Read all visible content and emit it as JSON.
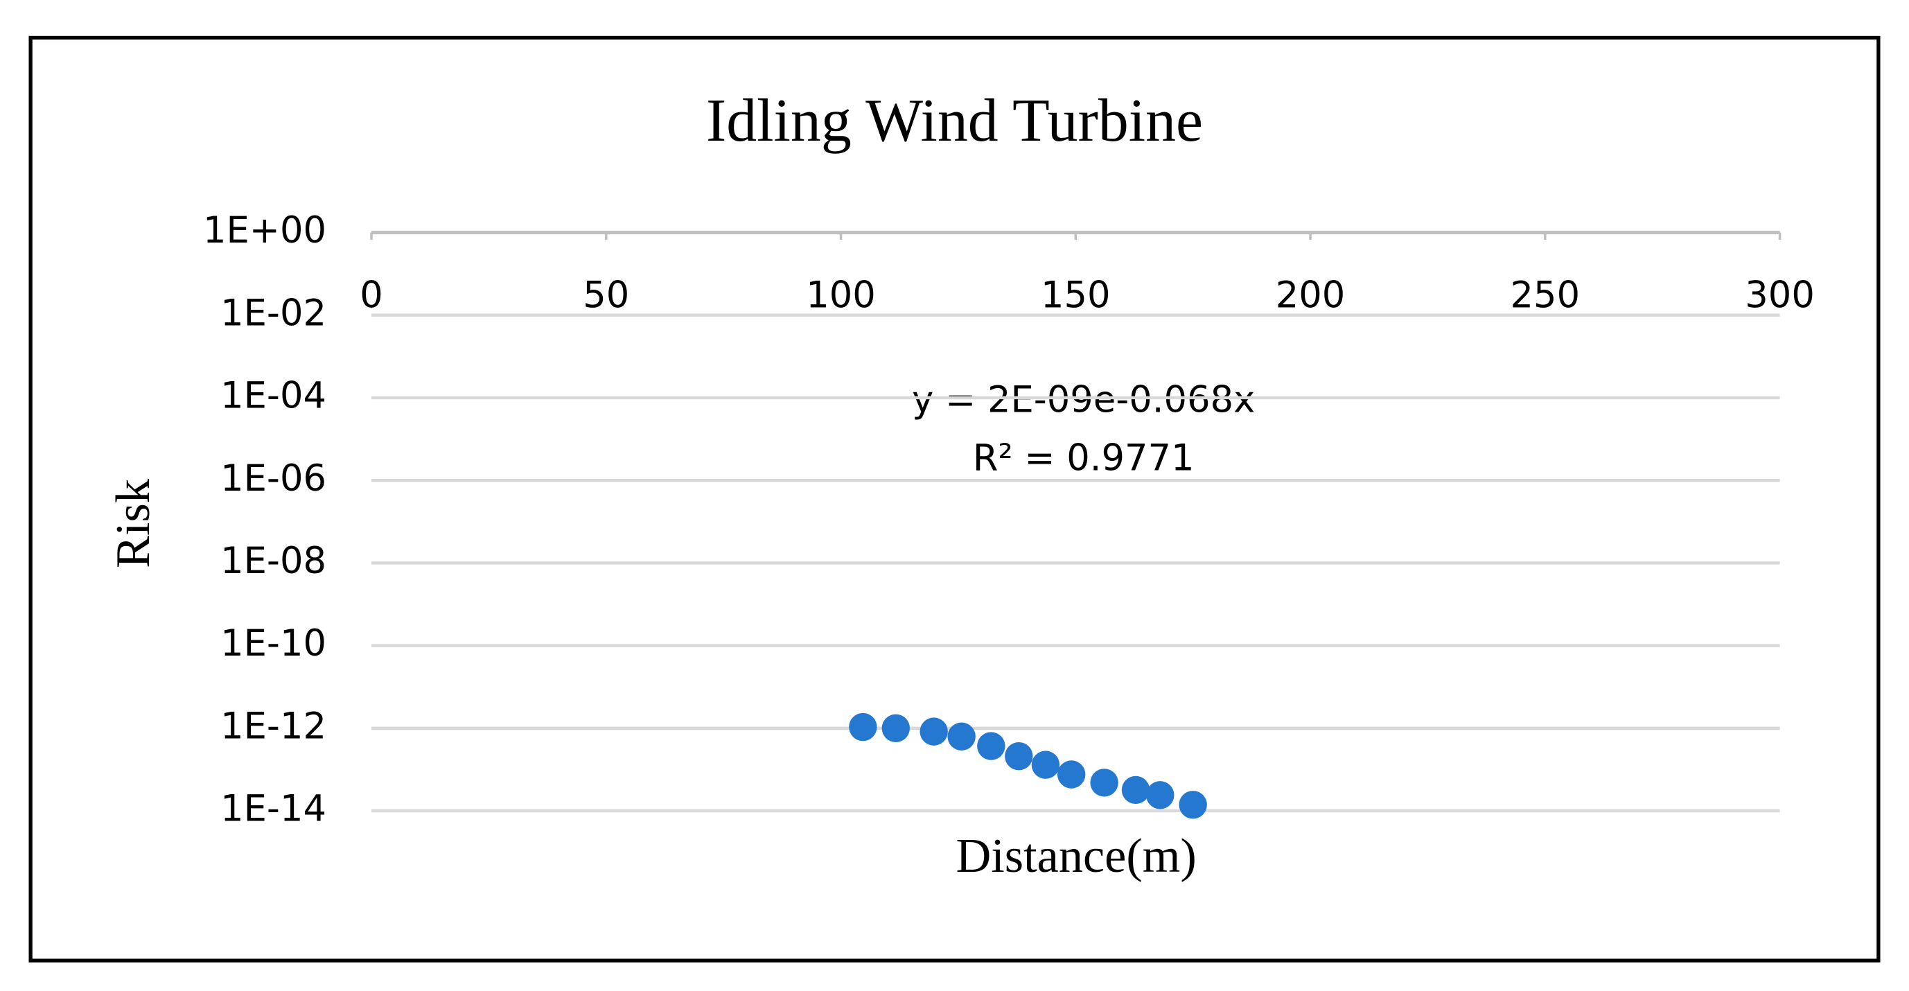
{
  "chart_data": {
    "type": "scatter",
    "title": "Idling Wind Turbine",
    "x_label": "Distance(m)",
    "y_label": "Risk",
    "annotations": [
      "y = 2E-09e-0.068x",
      "R² = 0.9771"
    ],
    "x": [
      104.7,
      111.7,
      119.8,
      125.7,
      132,
      137.9,
      143.6,
      149.1,
      156.1,
      162.8,
      168,
      175
    ],
    "series": [
      {
        "color": "#2478cf",
        "values": [
          1.07e-12,
          1e-12,
          8.3e-13,
          6.3e-13,
          3.7e-13,
          2.1e-13,
          1.3e-13,
          7.6e-14,
          4.8e-14,
          3.2e-14,
          2.4e-14,
          1.4e-14
        ]
      }
    ],
    "xlim": [
      0,
      300
    ],
    "xticks": [
      0,
      50,
      100,
      150,
      200,
      250,
      300
    ],
    "ylim": [
      1e-14,
      1
    ],
    "log_y": true,
    "yticks": [
      {
        "value": 1,
        "label": "1E+00"
      },
      {
        "value": 0.01,
        "label": "1E-02"
      },
      {
        "value": 0.0001,
        "label": "1E-04"
      },
      {
        "value": 1e-06,
        "label": "1E-06"
      },
      {
        "value": 1e-08,
        "label": "1E-08"
      },
      {
        "value": 1e-10,
        "label": "1E-10"
      },
      {
        "value": 1e-12,
        "label": "1E-12"
      },
      {
        "value": 1e-14,
        "label": "1E-14"
      }
    ],
    "grid": true
  }
}
